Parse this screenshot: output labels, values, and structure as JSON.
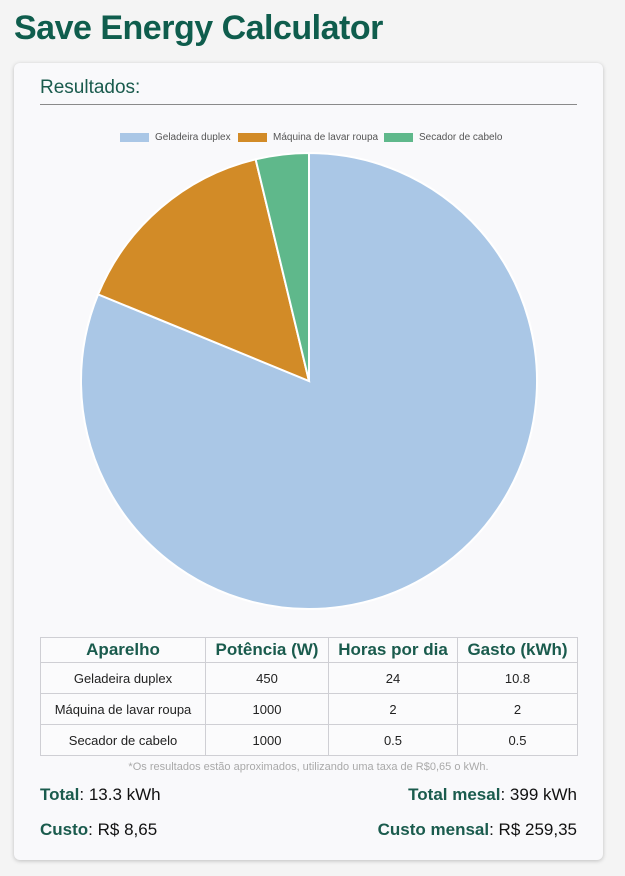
{
  "app": {
    "title": "Save Energy Calculator"
  },
  "results": {
    "heading": "Resultados:"
  },
  "chart_data": {
    "type": "pie",
    "legend_position": "top",
    "categories": [
      "Geladeira duplex",
      "Máquina de lavar roupa",
      "Secador de cabelo"
    ],
    "values": [
      10.8,
      2,
      0.5
    ],
    "colors": [
      "#aac7e6",
      "#d28b27",
      "#5fb88b"
    ]
  },
  "table": {
    "headers": [
      "Aparelho",
      "Potência (W)",
      "Horas por dia",
      "Gasto (kWh)"
    ],
    "rows": [
      [
        "Geladeira duplex",
        "450",
        "24",
        "10.8"
      ],
      [
        "Máquina de lavar roupa",
        "1000",
        "2",
        "2"
      ],
      [
        "Secador de cabelo",
        "1000",
        "0.5",
        "0.5"
      ]
    ]
  },
  "note": "*Os resultados estão aproximados, utilizando uma taxa de R$0,65 o kWh.",
  "summary": {
    "total_label": "Total",
    "total_value": "13.3 kWh",
    "monthly_total_label": "Total mesal",
    "monthly_total_value": "399 kWh",
    "cost_label": "Custo",
    "cost_value": "R$ 8,65",
    "monthly_cost_label": "Custo mensal",
    "monthly_cost_value": "R$ 259,35"
  }
}
